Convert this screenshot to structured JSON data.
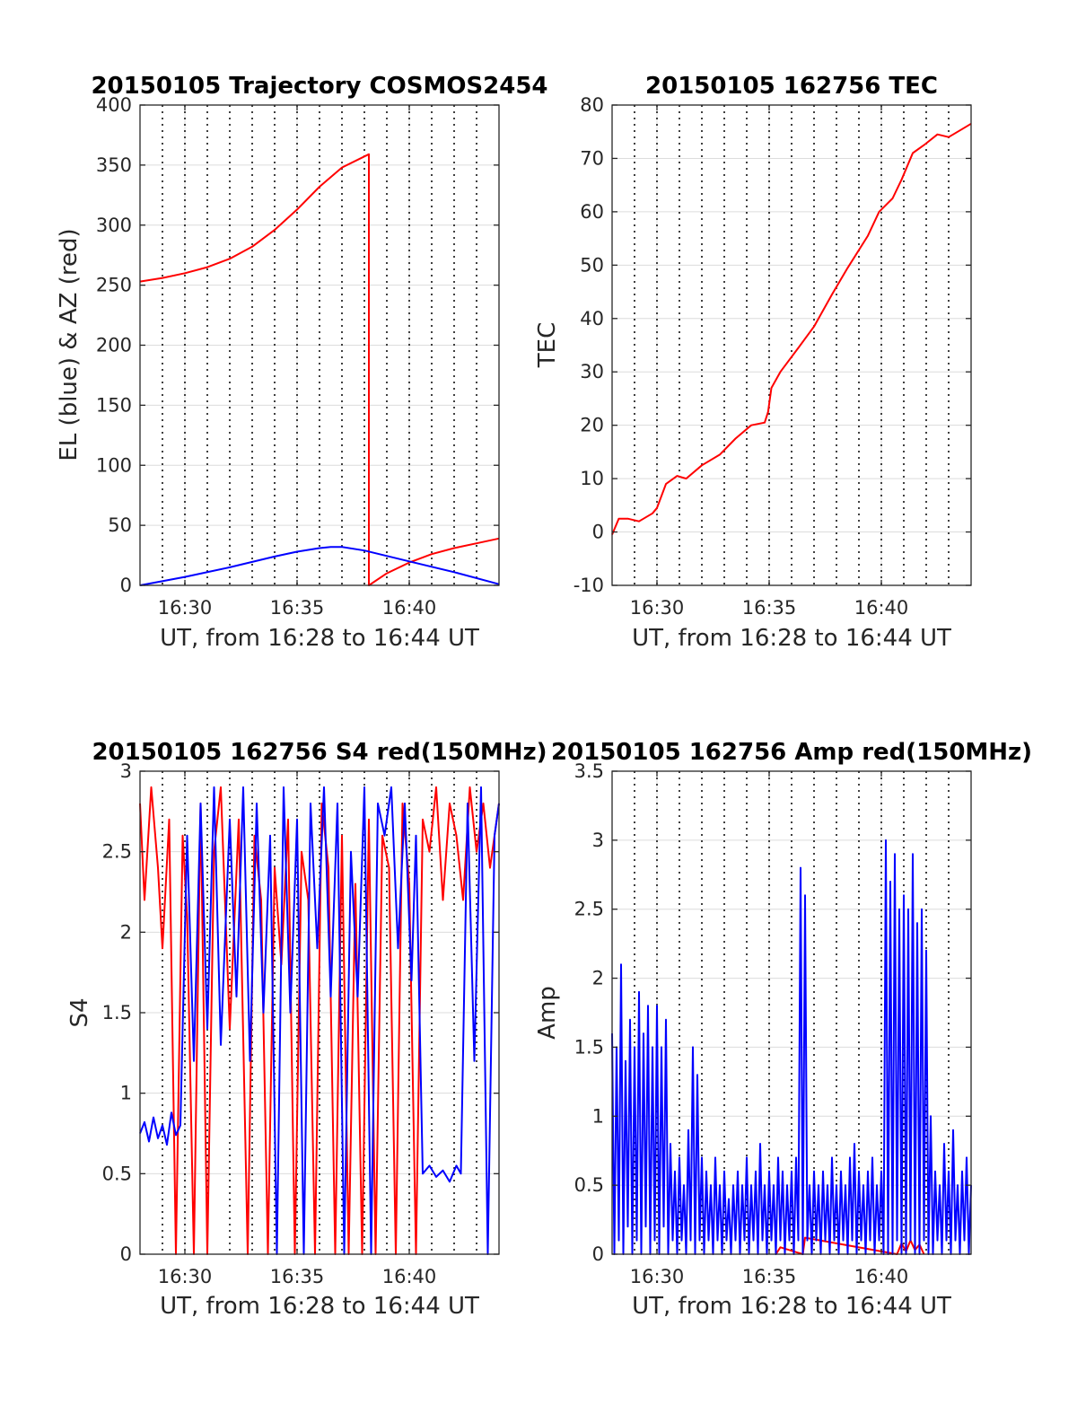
{
  "figure": {
    "background": "#ffffff"
  },
  "colors": {
    "red": "#ff0000",
    "blue": "#0000ff",
    "grid": "#dcdcdc",
    "vline": "#000000"
  },
  "chart_data": [
    {
      "id": "trajectory",
      "type": "line",
      "title": "20150105 Trajectory COSMOS2454",
      "xlabel": "UT, from 16:28 to 16:44 UT",
      "ylabel": "EL (blue) & AZ (red)",
      "xlim_min": [
        988,
        1004
      ],
      "ylim": [
        0,
        400
      ],
      "yticks": [
        0,
        50,
        100,
        150,
        200,
        250,
        300,
        350,
        400
      ],
      "ytick_labels": [
        "0",
        "50",
        "100",
        "150",
        "200",
        "250",
        "300",
        "350",
        "400"
      ],
      "xticks_min": [
        990,
        995,
        1000
      ],
      "xtick_labels": [
        "16:30",
        "16:35",
        "16:40"
      ],
      "grid": true,
      "series": [
        {
          "color": "red",
          "x_min": [
            988,
            989,
            990,
            991,
            992,
            993,
            994,
            995,
            996,
            997,
            998.2,
            998.2,
            999,
            1000,
            1001,
            1002,
            1003,
            1004
          ],
          "values": [
            253,
            256,
            260,
            265,
            272,
            282,
            296,
            313,
            332,
            348,
            359,
            0,
            10,
            19,
            26,
            31,
            35,
            39
          ]
        },
        {
          "color": "blue",
          "x_min": [
            988,
            990,
            992,
            994,
            995,
            996,
            996.5,
            997,
            998,
            1000,
            1002,
            1004
          ],
          "values": [
            0,
            7,
            15,
            24,
            28,
            31,
            32,
            32,
            29,
            20,
            11,
            1
          ]
        }
      ]
    },
    {
      "id": "tec",
      "type": "line",
      "title": "20150105 162756 TEC",
      "xlabel": "UT, from 16:28 to 16:44 UT",
      "ylabel": "TEC",
      "xlim_min": [
        988,
        1004
      ],
      "ylim": [
        -10,
        80
      ],
      "yticks": [
        -10,
        0,
        10,
        20,
        30,
        40,
        50,
        60,
        70,
        80
      ],
      "ytick_labels": [
        "-10",
        "0",
        "10",
        "20",
        "30",
        "40",
        "50",
        "60",
        "70",
        "80"
      ],
      "xticks_min": [
        990,
        995,
        1000
      ],
      "xtick_labels": [
        "16:30",
        "16:35",
        "16:40"
      ],
      "grid": true,
      "series": [
        {
          "color": "red",
          "x_min": [
            988.0,
            988.3,
            988.7,
            989.2,
            989.8,
            990.0,
            990.4,
            990.9,
            991.3,
            992.0,
            992.8,
            993.5,
            994.2,
            994.8,
            994.95,
            995.1,
            995.5,
            996.3,
            997.0,
            997.8,
            998.5,
            999.4,
            999.9,
            1000.5,
            1000.9,
            1001.4,
            1001.9,
            1002.5,
            1003.0,
            1003.6,
            1004.0
          ],
          "values": [
            -0.5,
            2.5,
            2.5,
            2.0,
            3.5,
            4.5,
            9.0,
            10.5,
            10.0,
            12.5,
            14.5,
            17.5,
            20.0,
            20.5,
            22.5,
            27.0,
            30.0,
            34.5,
            38.5,
            44.5,
            49.5,
            55.5,
            60.0,
            62.5,
            66.0,
            71.0,
            72.5,
            74.5,
            74.0,
            75.5,
            76.5
          ]
        }
      ]
    },
    {
      "id": "s4",
      "type": "line",
      "title": "20150105 162756 S4 red(150MHz)",
      "xlabel": "UT, from 16:28 to 16:44 UT",
      "ylabel": "S4",
      "xlim_min": [
        988,
        1004
      ],
      "ylim": [
        0,
        3
      ],
      "yticks": [
        0,
        0.5,
        1,
        1.5,
        2,
        2.5,
        3
      ],
      "ytick_labels": [
        "0",
        "0.5",
        "1",
        "1.5",
        "2",
        "2.5",
        "3"
      ],
      "xticks_min": [
        990,
        995,
        1000
      ],
      "xtick_labels": [
        "16:30",
        "16:35",
        "16:40"
      ],
      "grid": true,
      "series": [
        {
          "color": "red",
          "x_min": [
            988.0,
            988.2,
            988.5,
            988.8,
            989.0,
            989.3,
            989.6,
            989.9,
            990.1,
            990.4,
            990.7,
            991.0,
            991.3,
            991.6,
            992.0,
            992.4,
            992.8,
            993.1,
            993.4,
            993.7,
            994.0,
            994.3,
            994.6,
            994.9,
            995.2,
            995.5,
            995.8,
            996.1,
            996.4,
            996.7,
            997.0,
            997.3,
            997.6,
            997.9,
            998.2,
            998.5,
            998.8,
            999.1,
            999.4,
            999.7,
            1000.0,
            1000.3,
            1000.6,
            1000.9,
            1001.2,
            1001.5,
            1001.8,
            1002.1,
            1002.4,
            1002.7,
            1003.0,
            1003.3,
            1003.6,
            1004.0
          ],
          "values": [
            2.8,
            2.2,
            2.9,
            2.4,
            1.9,
            2.7,
            0.0,
            2.6,
            2.1,
            0.0,
            2.8,
            0.0,
            2.5,
            2.9,
            1.4,
            2.7,
            0.0,
            2.6,
            2.2,
            0.0,
            2.4,
            1.8,
            2.7,
            0.0,
            2.5,
            2.2,
            0.0,
            2.8,
            2.4,
            0.0,
            2.6,
            0.0,
            2.3,
            0.0,
            2.7,
            0.0,
            2.6,
            2.4,
            0.0,
            2.8,
            2.3,
            0.0,
            2.7,
            2.5,
            2.9,
            2.2,
            2.8,
            2.6,
            2.2,
            2.9,
            2.5,
            2.8,
            2.4,
            2.8
          ]
        },
        {
          "color": "blue",
          "x_min": [
            988.0,
            988.2,
            988.4,
            988.6,
            988.8,
            989.0,
            989.2,
            989.4,
            989.6,
            989.8,
            990.1,
            990.4,
            990.7,
            991.0,
            991.3,
            991.6,
            992.0,
            992.3,
            992.6,
            992.9,
            993.2,
            993.5,
            993.8,
            994.1,
            994.4,
            994.7,
            995.0,
            995.3,
            995.6,
            995.9,
            996.2,
            996.5,
            996.8,
            997.1,
            997.4,
            997.7,
            998.0,
            998.3,
            998.6,
            998.9,
            999.2,
            999.5,
            999.8,
            1000.1,
            1000.3,
            1000.6,
            1000.9,
            1001.2,
            1001.5,
            1001.8,
            1002.1,
            1002.3,
            1002.6,
            1002.9,
            1003.2,
            1003.5,
            1003.8,
            1004.0
          ],
          "values": [
            0.75,
            0.82,
            0.7,
            0.85,
            0.72,
            0.8,
            0.68,
            0.88,
            0.74,
            0.8,
            2.6,
            1.2,
            2.8,
            1.4,
            2.9,
            1.3,
            2.7,
            1.6,
            2.9,
            1.2,
            2.8,
            1.5,
            2.6,
            0.0,
            2.9,
            1.5,
            2.7,
            0.0,
            2.8,
            1.9,
            2.9,
            1.6,
            2.8,
            0.0,
            2.5,
            1.6,
            2.9,
            0.0,
            2.8,
            2.6,
            2.9,
            1.9,
            2.8,
            1.7,
            2.6,
            0.5,
            0.55,
            0.48,
            0.52,
            0.45,
            0.55,
            0.5,
            2.8,
            1.2,
            2.9,
            0.0,
            2.6,
            2.8
          ]
        }
      ]
    },
    {
      "id": "amp",
      "type": "line",
      "title": "20150105 162756 Amp red(150MHz)",
      "xlabel": "UT, from 16:28 to 16:44 UT",
      "ylabel": "Amp",
      "xlim_min": [
        988,
        1004
      ],
      "ylim": [
        0,
        3.5
      ],
      "yticks": [
        0,
        0.5,
        1,
        1.5,
        2,
        2.5,
        3,
        3.5
      ],
      "ytick_labels": [
        "0",
        "0.5",
        "1",
        "1.5",
        "2",
        "2.5",
        "3",
        "3.5"
      ],
      "xticks_min": [
        990,
        995,
        1000
      ],
      "xtick_labels": [
        "16:30",
        "16:35",
        "16:40"
      ],
      "grid": true,
      "series": [
        {
          "color": "red",
          "x_min": [
            995.3,
            995.5,
            996.5,
            996.6,
            1000.7,
            1000.9,
            1001.1,
            1001.3,
            1001.5,
            1001.7,
            1001.9
          ],
          "values": [
            0.0,
            0.05,
            0.0,
            0.12,
            0.0,
            0.08,
            0.02,
            0.1,
            0.03,
            0.07,
            0.0
          ]
        },
        {
          "color": "blue",
          "x_min": [
            988.0,
            988.1,
            988.2,
            988.3,
            988.4,
            988.5,
            988.6,
            988.7,
            988.8,
            988.9,
            989.0,
            989.1,
            989.2,
            989.3,
            989.4,
            989.5,
            989.6,
            989.7,
            989.8,
            989.9,
            990.0,
            990.1,
            990.2,
            990.3,
            990.4,
            990.5,
            990.6,
            990.7,
            990.8,
            990.9,
            991.0,
            991.1,
            991.2,
            991.3,
            991.4,
            991.5,
            991.6,
            991.7,
            991.8,
            991.9,
            992.0,
            992.1,
            992.2,
            992.3,
            992.4,
            992.5,
            992.6,
            992.7,
            992.8,
            992.9,
            993.0,
            993.1,
            993.2,
            993.3,
            993.4,
            993.5,
            993.6,
            993.7,
            993.8,
            993.9,
            994.0,
            994.1,
            994.2,
            994.3,
            994.4,
            994.5,
            994.6,
            994.7,
            994.8,
            994.9,
            995.0,
            995.1,
            995.2,
            995.3,
            995.4,
            995.5,
            995.6,
            995.7,
            995.8,
            995.9,
            996.0,
            996.1,
            996.2,
            996.3,
            996.4,
            996.5,
            996.6,
            996.7,
            996.8,
            996.9,
            997.0,
            997.1,
            997.2,
            997.3,
            997.4,
            997.5,
            997.6,
            997.7,
            997.8,
            997.9,
            998.0,
            998.1,
            998.2,
            998.3,
            998.4,
            998.5,
            998.6,
            998.7,
            998.8,
            998.9,
            999.0,
            999.1,
            999.2,
            999.3,
            999.4,
            999.5,
            999.6,
            999.7,
            999.8,
            999.9,
            1000.0,
            1000.1,
            1000.2,
            1000.3,
            1000.4,
            1000.5,
            1000.6,
            1000.7,
            1000.8,
            1000.9,
            1001.0,
            1001.1,
            1001.2,
            1001.3,
            1001.4,
            1001.5,
            1001.6,
            1001.7,
            1001.8,
            1001.9,
            1002.0,
            1002.1,
            1002.2,
            1002.3,
            1002.4,
            1002.5,
            1002.6,
            1002.7,
            1002.8,
            1002.9,
            1003.0,
            1003.1,
            1003.2,
            1003.3,
            1003.4,
            1003.5,
            1003.6,
            1003.7,
            1003.8,
            1003.9,
            1004.0
          ],
          "values": [
            1.6,
            0.0,
            1.5,
            0.1,
            2.1,
            0.0,
            1.4,
            0.2,
            1.7,
            0.0,
            1.5,
            0.1,
            1.9,
            0.0,
            1.6,
            0.2,
            1.8,
            0.0,
            1.5,
            0.1,
            1.8,
            0.0,
            1.5,
            0.2,
            1.7,
            0.0,
            0.8,
            0.1,
            0.6,
            0.0,
            0.7,
            0.1,
            0.5,
            0.0,
            0.9,
            0.1,
            1.5,
            0.0,
            1.3,
            0.1,
            0.7,
            0.0,
            0.6,
            0.1,
            0.5,
            0.0,
            0.7,
            0.1,
            0.5,
            0.0,
            0.6,
            0.1,
            0.4,
            0.0,
            0.5,
            0.1,
            0.6,
            0.0,
            0.5,
            0.1,
            0.7,
            0.0,
            0.5,
            0.1,
            0.6,
            0.0,
            0.8,
            0.1,
            0.5,
            0.0,
            0.6,
            0.1,
            0.5,
            0.0,
            0.7,
            0.1,
            0.6,
            0.0,
            0.5,
            0.1,
            0.6,
            0.0,
            0.7,
            0.1,
            2.8,
            0.0,
            2.6,
            0.1,
            0.5,
            0.0,
            0.6,
            0.1,
            0.5,
            0.0,
            0.6,
            0.1,
            0.5,
            0.0,
            0.7,
            0.1,
            0.5,
            0.0,
            0.6,
            0.1,
            0.5,
            0.0,
            0.7,
            0.1,
            0.8,
            0.0,
            0.6,
            0.1,
            0.5,
            0.0,
            0.6,
            0.1,
            0.7,
            0.0,
            0.5,
            0.1,
            0.6,
            0.0,
            3.0,
            0.0,
            2.7,
            0.0,
            2.9,
            0.1,
            2.5,
            0.0,
            2.6,
            0.0,
            2.5,
            0.1,
            2.9,
            0.0,
            2.4,
            0.0,
            2.5,
            0.1,
            2.2,
            0.0,
            1.0,
            0.0,
            0.6,
            0.1,
            0.5,
            0.0,
            0.8,
            0.1,
            0.6,
            0.0,
            0.9,
            0.1,
            0.5,
            0.0,
            0.6,
            0.1,
            0.7,
            0.0,
            0.5
          ]
        }
      ]
    }
  ]
}
